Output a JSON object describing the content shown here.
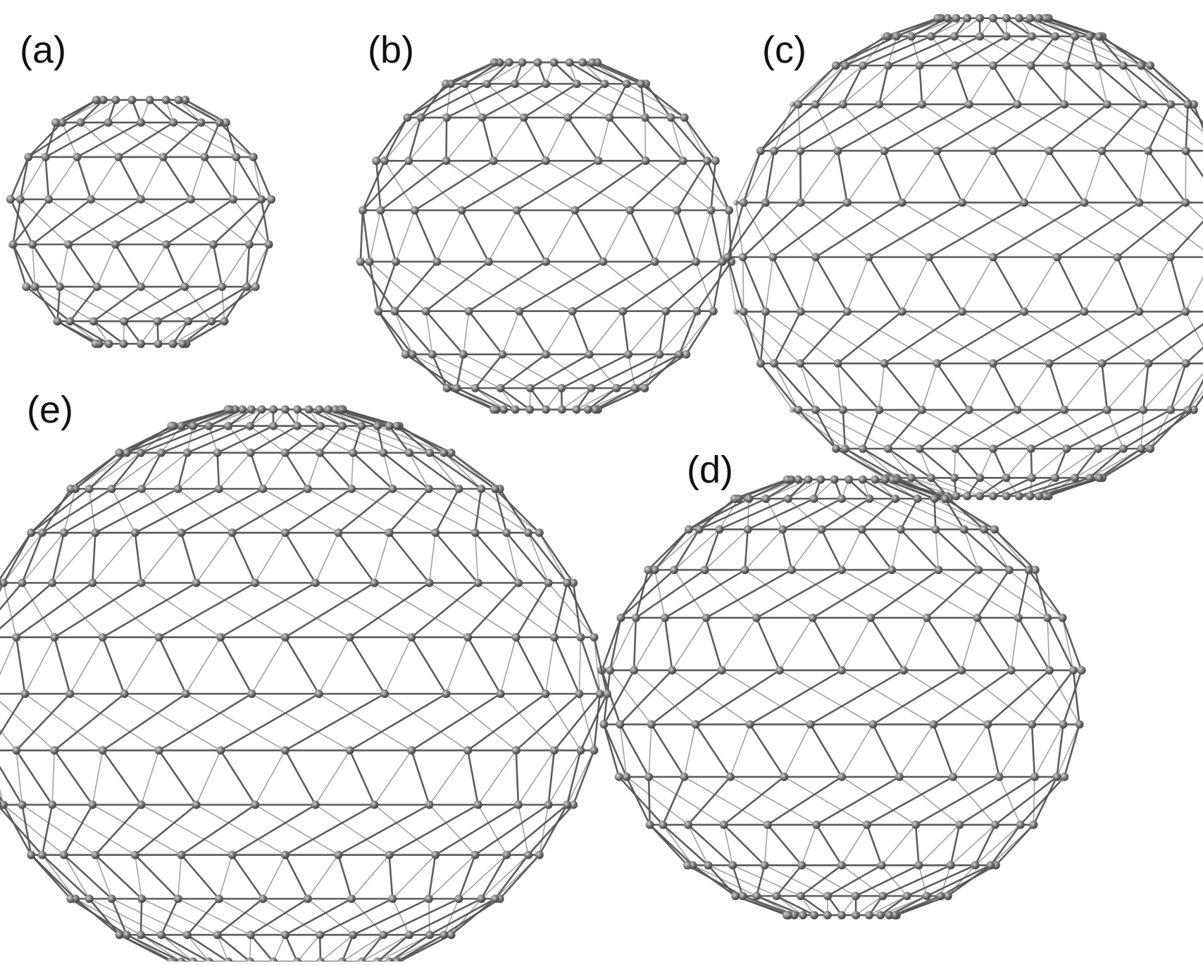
{
  "figure": {
    "panels": [
      {
        "id": "a",
        "label": "(a)",
        "icon": "fullerene-cage-icon"
      },
      {
        "id": "b",
        "label": "(b)",
        "icon": "fullerene-cage-icon"
      },
      {
        "id": "c",
        "label": "(c)",
        "icon": "fullerene-cage-icon"
      },
      {
        "id": "d",
        "label": "(d)",
        "icon": "fullerene-cage-icon"
      },
      {
        "id": "e",
        "label": "(e)",
        "icon": "fullerene-cage-icon"
      }
    ],
    "colors": {
      "bond": "#555555",
      "atom": "#6a6a6a",
      "atom_highlight": "#cfcfcf",
      "background": "#ffffff"
    }
  }
}
